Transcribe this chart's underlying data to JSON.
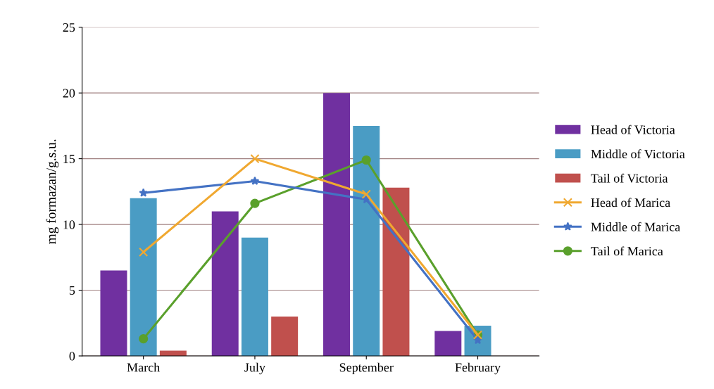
{
  "chart_data": {
    "type": "bar",
    "ylabel": "mg formazan/g.s.u.",
    "categories": [
      "March",
      "July",
      "September",
      "February"
    ],
    "series": [
      {
        "name": "Head of Victoria",
        "color": "#7030a0",
        "values": [
          6.5,
          11,
          20,
          1.9
        ]
      },
      {
        "name": "Middle of Victoria",
        "color": "#4a9cc4",
        "values": [
          12,
          9,
          17.5,
          2.3
        ]
      },
      {
        "name": "Tail of Victoria",
        "color": "#c0504d",
        "values": [
          0.4,
          3,
          12.8,
          0
        ]
      },
      {
        "name": "Head of Marica",
        "type": "line",
        "color": "#f0a830",
        "marker": "cross",
        "values": [
          7.9,
          15,
          12.3,
          1.6
        ]
      },
      {
        "name": "Middle of Marica",
        "type": "line",
        "color": "#4472c4",
        "marker": "star",
        "values": [
          12.4,
          13.3,
          11.9,
          1.2
        ]
      },
      {
        "name": "Tail of Marica",
        "type": "line",
        "color": "#5aa02c",
        "marker": "circle",
        "values": [
          1.3,
          11.6,
          14.9,
          1.6
        ]
      }
    ],
    "ylim": [
      0,
      25
    ],
    "yticks": [
      0,
      5,
      10,
      15,
      20,
      25
    ],
    "grid": "y",
    "legend": "right"
  }
}
